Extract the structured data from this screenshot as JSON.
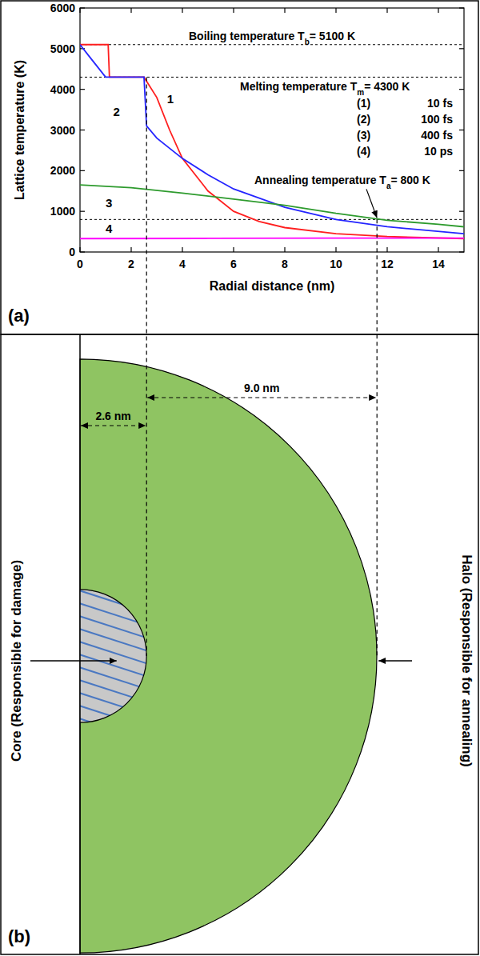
{
  "chart_data": {
    "type": "line",
    "panel_label": "(a)",
    "x_label": "Radial distance (nm)",
    "y_label": "Lattice temperature (K)",
    "xlim": [
      0,
      15
    ],
    "ylim": [
      0,
      6000
    ],
    "xticks": [
      0,
      2,
      4,
      6,
      8,
      10,
      12,
      14
    ],
    "yticks": [
      0,
      1000,
      2000,
      3000,
      4000,
      5000,
      6000
    ],
    "series": [
      {
        "label": "(1)",
        "name": "10 fs",
        "curve_label": "1",
        "color": "#ff1f1f",
        "x": [
          0,
          1.1,
          1.15,
          2.5,
          3.0,
          3.5,
          4,
          5,
          6,
          7,
          8,
          10,
          12,
          15
        ],
        "values": [
          5100,
          5100,
          4300,
          4300,
          3800,
          3000,
          2300,
          1500,
          1000,
          750,
          600,
          450,
          380,
          330
        ]
      },
      {
        "label": "(2)",
        "name": "100 fs",
        "curve_label": "2",
        "color": "#2424ff",
        "x": [
          0,
          0.5,
          1,
          2.5,
          2.6,
          3,
          4,
          5,
          6,
          8,
          10,
          12,
          15
        ],
        "values": [
          5100,
          4700,
          4300,
          4300,
          3100,
          2800,
          2300,
          1900,
          1550,
          1100,
          800,
          620,
          450
        ]
      },
      {
        "label": "(3)",
        "name": "400 fs",
        "curve_label": "3",
        "color": "#2e9b2e",
        "x": [
          0,
          2,
          4,
          6,
          8,
          10,
          12,
          14,
          15
        ],
        "values": [
          1650,
          1580,
          1450,
          1300,
          1150,
          950,
          780,
          680,
          620
        ]
      },
      {
        "label": "(4)",
        "name": "10 ps",
        "curve_label": "4",
        "color": "#ff00ff",
        "x": [
          0,
          5,
          10,
          15
        ],
        "values": [
          330,
          335,
          340,
          340
        ]
      }
    ],
    "reference_lines": [
      {
        "value": 5100,
        "label": "Boiling temperature T",
        "subscript": "b",
        "label_end": "= 5100 K"
      },
      {
        "value": 4300,
        "label": "Melting temperature T",
        "subscript": "m",
        "label_end": "= 4300 K"
      },
      {
        "value": 800,
        "label": "Annealing temperature T",
        "subscript": "a",
        "label_end": "= 800 K"
      }
    ]
  },
  "diagram": {
    "panel_label": "(b)",
    "core": {
      "label": "Core (Responsible for damage)",
      "radius": 2.6,
      "radius_label": "2.6 nm"
    },
    "halo": {
      "label": "Halo (Responsible for annealing)",
      "width": 9.0,
      "width_label": "9.0 nm"
    }
  }
}
